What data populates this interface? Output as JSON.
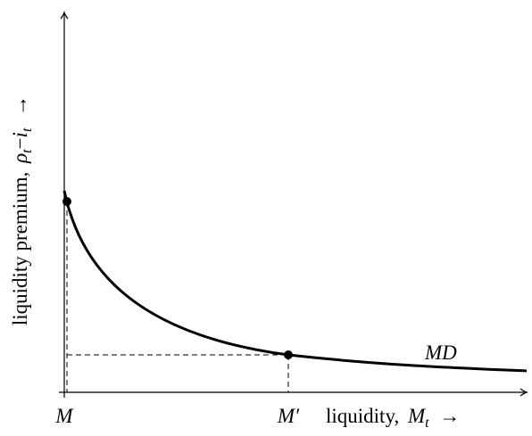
{
  "x_axis": {
    "ticks": [
      {
        "symbol": "M"
      },
      {
        "symbol": "M′"
      }
    ],
    "label": {
      "text": "liquidity,",
      "symbol": "M",
      "subscript": "t",
      "arrow": "→"
    }
  },
  "y_axis": {
    "label": {
      "text": "liquidity premium,",
      "symbol": "ρ",
      "subscript": "t",
      "operator": "−",
      "symbol2": "i",
      "subscript2": "t",
      "arrow": "→"
    }
  },
  "curve": {
    "label": "MD"
  }
}
